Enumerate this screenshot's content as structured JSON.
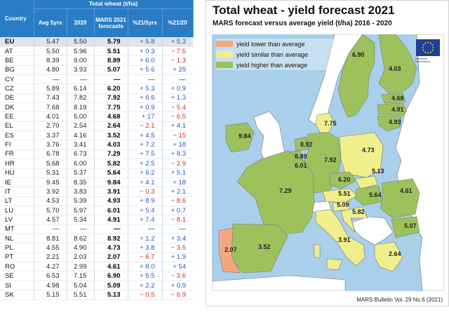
{
  "table": {
    "header_group": "Total wheat (t/ha)",
    "col_country": "Country",
    "col_avg": "Avg 5yrs",
    "col_2020": "2020",
    "col_fc": "MARS 2021 forecasts",
    "col_d5": "%21/5yrs",
    "col_d20": "%21/20",
    "rows": [
      {
        "cc": "EU",
        "avg": "5.47",
        "y20": "5.50",
        "fc": "5.79",
        "d5": "+ 5.8",
        "d20": "+ 5.3"
      },
      {
        "cc": "AT",
        "avg": "5.50",
        "y20": "5.96",
        "fc": "5.51",
        "d5": "+ 0.3",
        "d20": "− 7.5"
      },
      {
        "cc": "BE",
        "avg": "8.39",
        "y20": "9.00",
        "fc": "8.89",
        "d5": "+ 6.0",
        "d20": "− 1.3"
      },
      {
        "cc": "BG",
        "avg": "4.80",
        "y20": "3.93",
        "fc": "5.07",
        "d5": "+ 5.6",
        "d20": "+ 29"
      },
      {
        "cc": "CY",
        "avg": "—",
        "y20": "—",
        "fc": "—",
        "d5": "—",
        "d20": "—"
      },
      {
        "cc": "CZ",
        "avg": "5.89",
        "y20": "6.14",
        "fc": "6.20",
        "d5": "+ 5.3",
        "d20": "+ 0.9"
      },
      {
        "cc": "DE",
        "avg": "7.43",
        "y20": "7.82",
        "fc": "7.92",
        "d5": "+ 6.6",
        "d20": "+ 1.3"
      },
      {
        "cc": "DK",
        "avg": "7.68",
        "y20": "8.19",
        "fc": "7.75",
        "d5": "+ 0.9",
        "d20": "− 5.4"
      },
      {
        "cc": "EE",
        "avg": "4.01",
        "y20": "5.00",
        "fc": "4.68",
        "d5": "+ 17",
        "d20": "− 6.5"
      },
      {
        "cc": "EL",
        "avg": "2.70",
        "y20": "2.54",
        "fc": "2.64",
        "d5": "− 2.1",
        "d20": "+ 4.1"
      },
      {
        "cc": "ES",
        "avg": "3.37",
        "y20": "4.16",
        "fc": "3.52",
        "d5": "+ 4.5",
        "d20": "− 15"
      },
      {
        "cc": "FI",
        "avg": "3.76",
        "y20": "3.41",
        "fc": "4.03",
        "d5": "+ 7.2",
        "d20": "+ 18"
      },
      {
        "cc": "FR",
        "avg": "6.78",
        "y20": "6.73",
        "fc": "7.29",
        "d5": "+ 7.5",
        "d20": "+ 8.3"
      },
      {
        "cc": "HR",
        "avg": "5.68",
        "y20": "6.00",
        "fc": "5.82",
        "d5": "+ 2.5",
        "d20": "− 2.9"
      },
      {
        "cc": "HU",
        "avg": "5.31",
        "y20": "5.37",
        "fc": "5.64",
        "d5": "+ 6.2",
        "d20": "+ 5.1"
      },
      {
        "cc": "IE",
        "avg": "9.45",
        "y20": "8.35",
        "fc": "9.84",
        "d5": "+ 4.1",
        "d20": "+ 18"
      },
      {
        "cc": "IT",
        "avg": "3.92",
        "y20": "3.83",
        "fc": "3.91",
        "d5": "− 0.3",
        "d20": "+ 2.1"
      },
      {
        "cc": "LT",
        "avg": "4.53",
        "y20": "5.39",
        "fc": "4.93",
        "d5": "+ 8.9",
        "d20": "− 8.6"
      },
      {
        "cc": "LU",
        "avg": "5.70",
        "y20": "5.97",
        "fc": "6.01",
        "d5": "+ 5.4",
        "d20": "+ 0.7"
      },
      {
        "cc": "LV",
        "avg": "4.57",
        "y20": "5.34",
        "fc": "4.91",
        "d5": "+ 7.4",
        "d20": "− 8.1"
      },
      {
        "cc": "MT",
        "avg": "—",
        "y20": "—",
        "fc": "—",
        "d5": "—",
        "d20": "—"
      },
      {
        "cc": "NL",
        "avg": "8.81",
        "y20": "8.62",
        "fc": "8.92",
        "d5": "+ 1.2",
        "d20": "+ 3.4"
      },
      {
        "cc": "PL",
        "avg": "4.55",
        "y20": "4.90",
        "fc": "4.73",
        "d5": "+ 3.8",
        "d20": "− 3.5"
      },
      {
        "cc": "PT",
        "avg": "2.21",
        "y20": "2.03",
        "fc": "2.07",
        "d5": "− 6.7",
        "d20": "+ 1.9"
      },
      {
        "cc": "RO",
        "avg": "4.27",
        "y20": "2.99",
        "fc": "4.61",
        "d5": "+ 8.0",
        "d20": "+ 54"
      },
      {
        "cc": "SE",
        "avg": "6.53",
        "y20": "7.15",
        "fc": "6.90",
        "d5": "+ 5.5",
        "d20": "− 3.6"
      },
      {
        "cc": "SI",
        "avg": "4.98",
        "y20": "5.04",
        "fc": "5.09",
        "d5": "+ 2.2",
        "d20": "+ 0.9"
      },
      {
        "cc": "SK",
        "avg": "5.15",
        "y20": "5.51",
        "fc": "5.13",
        "d5": "− 0.5",
        "d20": "− 6.9"
      }
    ]
  },
  "map": {
    "title": "Total wheat - yield forecast 2021",
    "subtitle": "MARS forecast versus average yield (t/ha) 2016 - 2020",
    "legend": [
      {
        "label": "yield lower than average",
        "color": "#f4a77f"
      },
      {
        "label": "yield similar than average",
        "color": "#f0ef8c"
      },
      {
        "label": "yield higher than average",
        "color": "#9dc25c"
      }
    ],
    "colors": {
      "sea": "#a9cfea",
      "nonEU": "#ffffff",
      "lower": "#f4a77f",
      "similar": "#f0ef8c",
      "higher": "#9dc25c",
      "border": "#7a7a7a"
    },
    "logo_caption": "European Commission",
    "footer": "MARS Bulletin Vol. 29 No.6 (2021)",
    "labels": {
      "SE": "6.90",
      "FI": "4.03",
      "EE": "4.68",
      "LV": "4.91",
      "LT": "4.93",
      "IE": "9.84",
      "DK": "7.75",
      "NL": "8.92",
      "BE": "8.89",
      "LU": "6.01",
      "DE": "7.92",
      "PL": "4.73",
      "CZ": "6.20",
      "SK": "5.13",
      "FR": "7.29",
      "AT": "5.51",
      "HU": "5.64",
      "RO": "4.61",
      "SI": "5.09",
      "HR": "5.82",
      "BG": "5.07",
      "IT": "3.91",
      "ES": "3.52",
      "PT": "2.07",
      "EL": "2.64"
    },
    "categories": {
      "SE": "higher",
      "FI": "higher",
      "EE": "higher",
      "LV": "higher",
      "LT": "higher",
      "IE": "higher",
      "DK": "similar",
      "NL": "higher",
      "BE": "higher",
      "LU": "higher",
      "DE": "higher",
      "PL": "similar",
      "CZ": "higher",
      "SK": "similar",
      "FR": "higher",
      "AT": "similar",
      "HU": "higher",
      "RO": "higher",
      "SI": "similar",
      "HR": "similar",
      "BG": "higher",
      "IT": "similar",
      "ES": "higher",
      "PT": "lower",
      "EL": "similar"
    }
  }
}
